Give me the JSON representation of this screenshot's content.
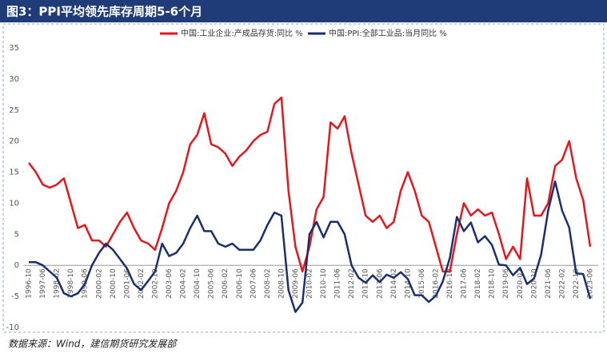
{
  "chart_data": {
    "type": "line",
    "title": "图3：PPI平均领先库存周期5-6个月",
    "source": "数据来源：Wind，建信期货研究发展部",
    "categories": [
      "1996-10",
      null,
      "1997-06",
      null,
      "1998-02",
      null,
      "1998-10",
      null,
      "1999-06",
      null,
      "2000-02",
      null,
      "2000-10",
      null,
      "2001-06",
      null,
      "2002-02",
      null,
      "2002-10",
      null,
      "2003-06",
      null,
      "2004-02",
      null,
      "2004-10",
      null,
      "2005-06",
      null,
      "2006-02",
      null,
      "2006-10",
      null,
      "2007-06",
      null,
      "2008-02",
      null,
      "2008-10",
      null,
      "2009-06",
      null,
      "2010-02",
      null,
      "2010-10",
      null,
      "2011-06",
      null,
      "2012-02",
      null,
      "2012-10",
      null,
      "2013-06",
      null,
      "2014-02",
      null,
      "2014-10",
      null,
      "2015-06",
      null,
      "2016-02",
      null,
      "2016-10",
      null,
      "2017-06",
      null,
      "2018-02",
      null,
      "2018-10",
      null,
      "2019-06",
      null,
      "2020-02",
      null,
      "2020-10",
      null,
      "2021-06",
      null,
      "2022-02",
      null,
      "2022-10",
      null,
      "2023-06"
    ],
    "series": [
      {
        "name": "中国:工业企业:产成品存货:同比 %",
        "color": "#e8161c",
        "values": [
          16.5,
          15,
          13,
          12.5,
          13,
          14,
          10,
          6,
          6.5,
          4,
          4,
          3,
          5,
          7,
          8.5,
          6,
          4,
          3.5,
          2.5,
          6,
          10,
          12,
          15,
          19.5,
          21,
          24.5,
          19.5,
          19,
          18,
          16,
          17.5,
          18.5,
          20,
          21,
          21.5,
          26,
          27,
          12,
          3,
          -1,
          3,
          9,
          11,
          23,
          22,
          24,
          18,
          13,
          8,
          7,
          8,
          6,
          7,
          12,
          15,
          12,
          8,
          7,
          3,
          -1,
          -1,
          5,
          10,
          8,
          9,
          8,
          8.5,
          5,
          1,
          3,
          1,
          14,
          8,
          8,
          10,
          16,
          17,
          20,
          14,
          10.5,
          3
        ]
      },
      {
        "name": "中国:PPI:全部工业品:当月同比 %",
        "color": "#1a2f6e",
        "values": [
          0.5,
          0.5,
          0,
          -1,
          -2,
          -4.5,
          -5,
          -4.5,
          -3,
          0,
          2,
          3.5,
          2.5,
          1,
          -0.5,
          -3,
          -4,
          -2.5,
          -1,
          3.5,
          1.5,
          2,
          3.5,
          6,
          8,
          5.5,
          5.5,
          3.5,
          3,
          3.5,
          2.5,
          2.5,
          2.5,
          4,
          6.5,
          8.5,
          8,
          -4,
          -7.5,
          -6,
          5,
          7,
          4.5,
          7,
          7,
          5,
          0,
          -2,
          -2.8,
          -1.6,
          -2.7,
          -1.5,
          -2,
          -1.1,
          -2.2,
          -4.8,
          -4.8,
          -5.9,
          -4.9,
          -2.6,
          1.2,
          7.8,
          5.5,
          6.9,
          3.7,
          4.7,
          3.3,
          0.1,
          0,
          -1.6,
          -0.4,
          -3,
          -2.1,
          1.7,
          8.8,
          13.5,
          8.8,
          6.1,
          -1.3,
          -1.4,
          -5.4
        ]
      }
    ],
    "ylim": [
      -10,
      35
    ],
    "yticks": [
      -10,
      -5,
      0,
      5,
      10,
      15,
      20,
      25,
      30,
      35
    ],
    "grid": false
  }
}
